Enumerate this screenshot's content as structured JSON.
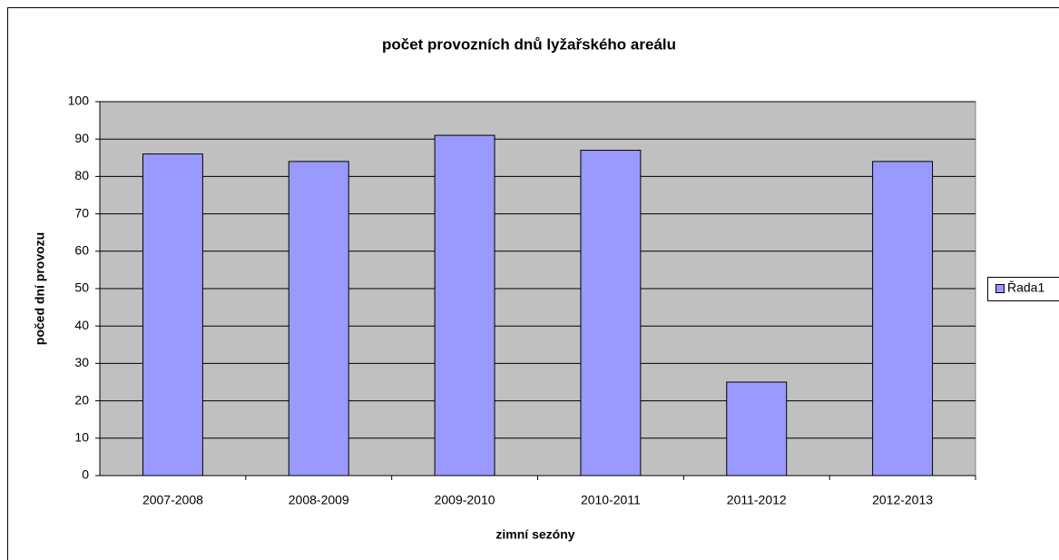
{
  "chart_data": {
    "type": "bar",
    "title": "počet provozních dnů lyžařského areálu",
    "x_label": "zimní sezóny",
    "y_label": "počed dní provozu",
    "categories": [
      "2007-2008",
      "2008-2009",
      "2009-2010",
      "2010-2011",
      "2011-2012",
      "2012-2013"
    ],
    "series": [
      {
        "name": "Řada1",
        "color": "#9999ff",
        "values": [
          86,
          84,
          91,
          87,
          25,
          84
        ]
      }
    ],
    "ylim": [
      0,
      100
    ],
    "yticks": [
      0,
      10,
      20,
      30,
      40,
      50,
      60,
      70,
      80,
      90,
      100
    ],
    "grid": true,
    "legend": "right"
  }
}
